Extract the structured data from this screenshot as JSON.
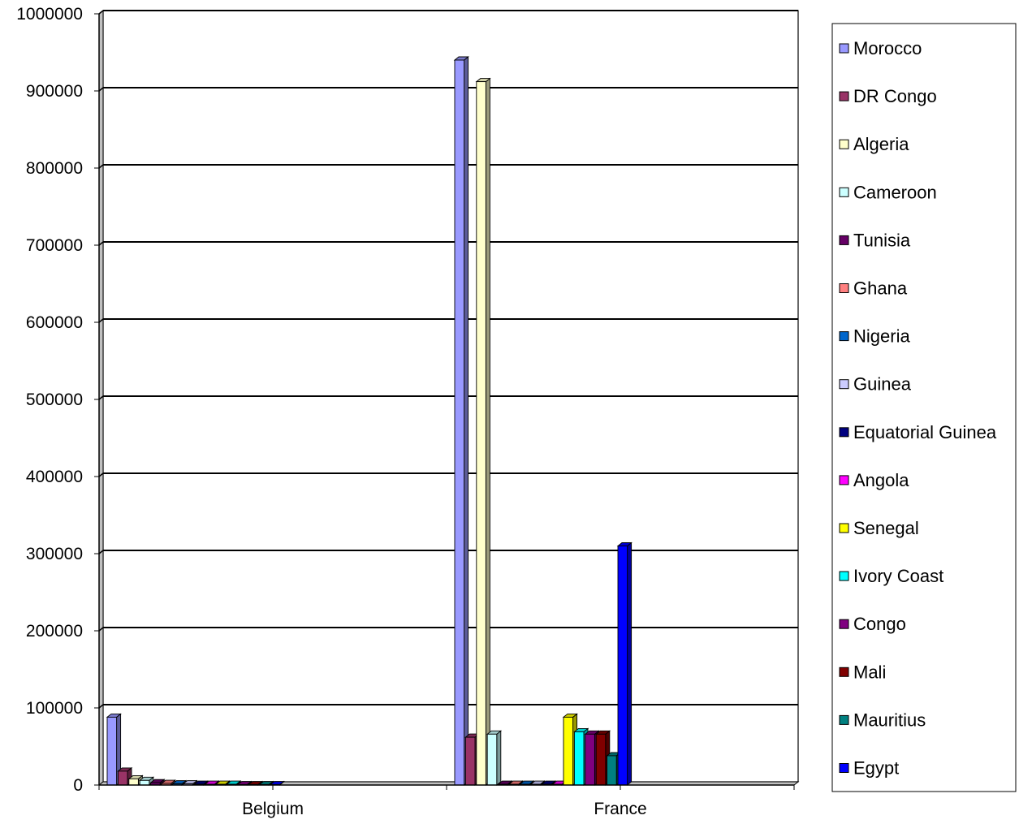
{
  "chart_data": {
    "type": "bar",
    "style": "3d-clustered-column",
    "categories": [
      "Belgium",
      "France"
    ],
    "ylim": [
      0,
      1000000
    ],
    "yticks": [
      "0",
      "100000",
      "200000",
      "300000",
      "400000",
      "500000",
      "600000",
      "700000",
      "800000",
      "900000",
      "1000000"
    ],
    "grid": true,
    "legend_position": "right",
    "series": [
      {
        "name": "Morocco",
        "color": "#9999ff",
        "values": [
          88000,
          940000
        ]
      },
      {
        "name": "DR Congo",
        "color": "#993366",
        "values": [
          18000,
          62000
        ]
      },
      {
        "name": "Algeria",
        "color": "#ffffcc",
        "values": [
          8000,
          912000
        ]
      },
      {
        "name": "Cameroon",
        "color": "#ccffff",
        "values": [
          6000,
          66000
        ]
      },
      {
        "name": "Tunisia",
        "color": "#660066",
        "values": [
          3000,
          1000
        ]
      },
      {
        "name": "Ghana",
        "color": "#ff8080",
        "values": [
          2000,
          1000
        ]
      },
      {
        "name": "Nigeria",
        "color": "#0066cc",
        "values": [
          1500,
          1000
        ]
      },
      {
        "name": "Guinea",
        "color": "#ccccff",
        "values": [
          1500,
          1000
        ]
      },
      {
        "name": "Equatorial Guinea",
        "color": "#000080",
        "values": [
          1000,
          1000
        ]
      },
      {
        "name": "Angola",
        "color": "#ff00ff",
        "values": [
          1000,
          1000
        ]
      },
      {
        "name": "Senegal",
        "color": "#ffff00",
        "values": [
          1000,
          88000
        ]
      },
      {
        "name": "Ivory Coast",
        "color": "#00ffff",
        "values": [
          1000,
          69000
        ]
      },
      {
        "name": "Congo",
        "color": "#800080",
        "values": [
          500,
          66000
        ]
      },
      {
        "name": "Mali",
        "color": "#800000",
        "values": [
          500,
          66000
        ]
      },
      {
        "name": "Mauritius",
        "color": "#008080",
        "values": [
          500,
          38000
        ]
      },
      {
        "name": "Egypt",
        "color": "#0000ff",
        "values": [
          500,
          310000
        ]
      }
    ]
  }
}
